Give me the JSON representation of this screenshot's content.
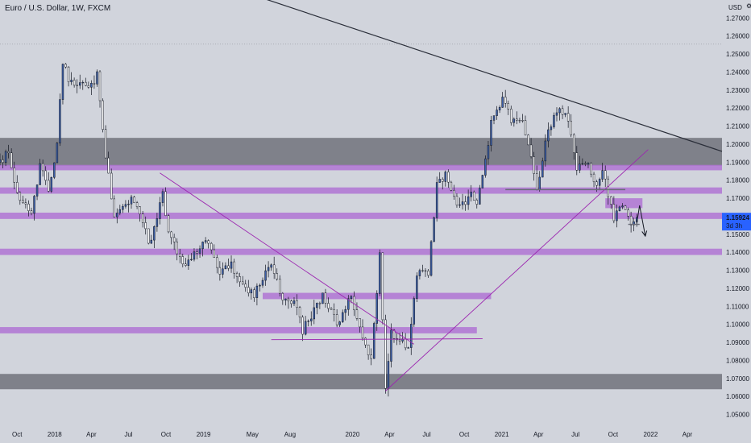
{
  "chart_data": {
    "type": "candlestick",
    "title": "Euro / U.S. Dollar, 1W, FXCM",
    "y_unit": "USD",
    "settings_glyph": "⚙",
    "ylim": [
      1.044,
      1.28
    ],
    "y_ticks": [
      "1.27000",
      "1.26000",
      "1.25000",
      "1.24000",
      "1.23000",
      "1.22000",
      "1.21000",
      "1.20000",
      "1.19000",
      "1.18000",
      "1.17000",
      "1.16000",
      "1.15000",
      "1.14000",
      "1.13000",
      "1.12000",
      "1.11000",
      "1.10000",
      "1.09000",
      "1.08000",
      "1.07000",
      "1.06000",
      "1.05000"
    ],
    "y_tick_values": [
      1.27,
      1.26,
      1.25,
      1.24,
      1.23,
      1.22,
      1.21,
      1.2,
      1.19,
      1.18,
      1.17,
      1.16,
      1.15,
      1.14,
      1.13,
      1.12,
      1.11,
      1.1,
      1.09,
      1.08,
      1.07,
      1.06,
      1.05
    ],
    "x_ticks": [
      "Oct",
      "2018",
      "Apr",
      "Jul",
      "Oct",
      "2019",
      "May",
      "Aug",
      "2020",
      "Apr",
      "Jul",
      "Oct",
      "2021",
      "Apr",
      "Jul",
      "Oct",
      "2022",
      "Apr"
    ],
    "x_tick_dates": [
      "2017-10-01",
      "2018-01-01",
      "2018-04-01",
      "2018-07-01",
      "2018-10-01",
      "2019-01-01",
      "2019-05-01",
      "2019-08-01",
      "2020-01-01",
      "2020-04-01",
      "2020-07-01",
      "2020-10-01",
      "2021-01-01",
      "2021-04-01",
      "2021-07-01",
      "2021-10-01",
      "2022-01-01",
      "2022-04-01"
    ],
    "x_range": [
      "2017-08-20",
      "2022-06-25"
    ],
    "current_price": "1.15924",
    "countdown": "3d 3h",
    "price_line": 1.2555,
    "anchors": [
      [
        "2017-08-20",
        1.19
      ],
      [
        "2017-09-10",
        1.196
      ],
      [
        "2017-09-24",
        1.178
      ],
      [
        "2017-10-15",
        1.166
      ],
      [
        "2017-11-05",
        1.161
      ],
      [
        "2017-11-26",
        1.187
      ],
      [
        "2017-12-17",
        1.174
      ],
      [
        "2018-01-07",
        1.201
      ],
      [
        "2018-01-21",
        1.244
      ],
      [
        "2018-02-04",
        1.237
      ],
      [
        "2018-02-18",
        1.232
      ],
      [
        "2018-03-04",
        1.233
      ],
      [
        "2018-03-25",
        1.23
      ],
      [
        "2018-04-15",
        1.238
      ],
      [
        "2018-05-06",
        1.191
      ],
      [
        "2018-05-27",
        1.162
      ],
      [
        "2018-06-17",
        1.165
      ],
      [
        "2018-07-08",
        1.17
      ],
      [
        "2018-08-05",
        1.158
      ],
      [
        "2018-08-19",
        1.143
      ],
      [
        "2018-09-23",
        1.173
      ],
      [
        "2018-10-07",
        1.152
      ],
      [
        "2018-11-04",
        1.135
      ],
      [
        "2018-11-25",
        1.135
      ],
      [
        "2019-01-06",
        1.146
      ],
      [
        "2019-02-10",
        1.13
      ],
      [
        "2019-03-10",
        1.133
      ],
      [
        "2019-04-07",
        1.124
      ],
      [
        "2019-05-05",
        1.116
      ],
      [
        "2019-06-09",
        1.134
      ],
      [
        "2019-07-14",
        1.116
      ],
      [
        "2019-08-11",
        1.112
      ],
      [
        "2019-09-01",
        1.097
      ],
      [
        "2019-10-20",
        1.115
      ],
      [
        "2019-11-24",
        1.101
      ],
      [
        "2019-12-29",
        1.115
      ],
      [
        "2020-02-16",
        1.08
      ],
      [
        "2020-03-08",
        1.139
      ],
      [
        "2020-03-22",
        1.067
      ],
      [
        "2020-04-05",
        1.095
      ],
      [
        "2020-05-17",
        1.088
      ],
      [
        "2020-06-07",
        1.129
      ],
      [
        "2020-07-05",
        1.129
      ],
      [
        "2020-07-26",
        1.177
      ],
      [
        "2020-08-16",
        1.183
      ],
      [
        "2020-09-20",
        1.164
      ],
      [
        "2020-10-18",
        1.172
      ],
      [
        "2020-11-01",
        1.164
      ],
      [
        "2020-12-06",
        1.211
      ],
      [
        "2021-01-03",
        1.227
      ],
      [
        "2021-01-24",
        1.213
      ],
      [
        "2021-02-21",
        1.212
      ],
      [
        "2021-03-28",
        1.176
      ],
      [
        "2021-04-25",
        1.209
      ],
      [
        "2021-05-23",
        1.22
      ],
      [
        "2021-06-13",
        1.213
      ],
      [
        "2021-07-04",
        1.187
      ],
      [
        "2021-08-01",
        1.188
      ],
      [
        "2021-08-22",
        1.176
      ],
      [
        "2021-09-05",
        1.187
      ],
      [
        "2021-10-03",
        1.16
      ],
      [
        "2021-10-24",
        1.165
      ],
      [
        "2021-11-14",
        1.156
      ],
      [
        "2021-11-28",
        1.1592
      ]
    ],
    "zones": [
      {
        "from": 1.188,
        "to": 1.2035,
        "color": "#7a7c85"
      },
      {
        "from": 1.064,
        "to": 1.0725,
        "color": "#7a7c85"
      },
      {
        "from": 1.1855,
        "to": 1.1885,
        "color": "#b074d4",
        "x_from": "2017-08-20",
        "x_to": "2022-06-25"
      },
      {
        "from": 1.1725,
        "to": 1.176,
        "color": "#b074d4",
        "x_from": "2017-08-20",
        "x_to": "2022-06-25"
      },
      {
        "from": 1.1585,
        "to": 1.162,
        "color": "#b074d4",
        "x_from": "2017-08-20",
        "x_to": "2022-06-25"
      },
      {
        "from": 1.1385,
        "to": 1.142,
        "color": "#b074d4",
        "x_from": "2017-08-20",
        "x_to": "2022-06-25"
      },
      {
        "from": 1.114,
        "to": 1.1175,
        "color": "#b074d4",
        "x_from": "2019-05-26",
        "x_to": "2020-12-06"
      },
      {
        "from": 1.095,
        "to": 1.0985,
        "color": "#b074d4",
        "x_from": "2017-08-20",
        "x_to": "2020-11-01"
      },
      {
        "from": 1.1645,
        "to": 1.17,
        "color": "#b074d4",
        "x_from": "2021-09-12",
        "x_to": "2021-12-12"
      }
    ],
    "trendlines": [
      {
        "from": [
          "2019-01-27",
          1.29
        ],
        "to": [
          "2022-06-25",
          1.196
        ],
        "color": "#2a2e39",
        "width": 1.2
      },
      {
        "from": [
          "2018-09-16",
          1.184
        ],
        "to": [
          "2020-05-31",
          1.089
        ],
        "color": "#9c27b0",
        "width": 0.9
      },
      {
        "from": [
          "2020-03-22",
          1.063
        ],
        "to": [
          "2021-12-26",
          1.197
        ],
        "color": "#9c27b0",
        "width": 0.9
      },
      {
        "from": [
          "2019-06-16",
          1.0915
        ],
        "to": [
          "2020-11-15",
          1.092
        ],
        "color": "#9c27b0",
        "width": 0.9
      },
      {
        "from": [
          "2021-01-10",
          1.1748
        ],
        "to": [
          "2021-10-31",
          1.1748
        ],
        "color": "#6a6d78",
        "width": 1.4
      },
      {
        "from": [
          "2021-11-07",
          1.1555
        ],
        "to": [
          "2021-12-05",
          1.1555
        ],
        "color": "#6a6d78",
        "width": 1.4
      }
    ],
    "projection": [
      [
        "2021-11-28",
        1.156
      ],
      [
        "2021-12-05",
        1.166
      ],
      [
        "2021-12-19",
        1.149
      ]
    ],
    "colors": {
      "up": "#3c5fa8",
      "down": "#ffffff",
      "wick": "#131722",
      "background": "#d1d4dc",
      "price_label": "#2962ff",
      "arrow": "#131722"
    }
  }
}
